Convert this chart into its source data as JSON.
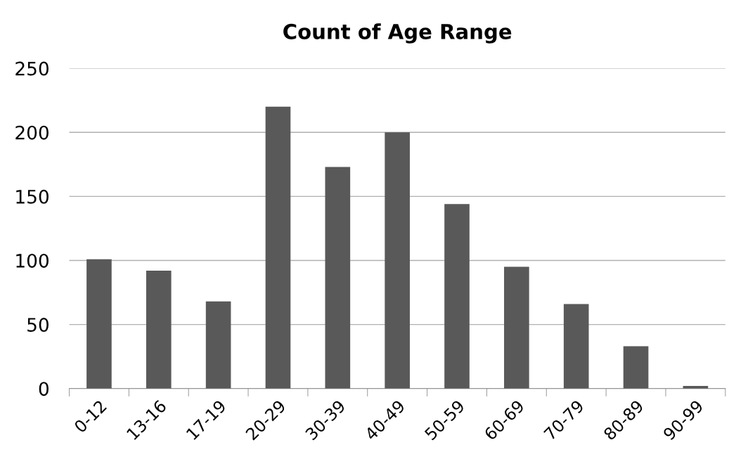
{
  "chart_data": {
    "type": "bar",
    "title": "Count of Age Range",
    "categories": [
      "0-12",
      "13-16",
      "17-19",
      "20-29",
      "30-39",
      "40-49",
      "50-59",
      "60-69",
      "70-79",
      "80-89",
      "90-99"
    ],
    "values": [
      101,
      92,
      68,
      220,
      173,
      200,
      144,
      95,
      66,
      33,
      2
    ],
    "color": "#595959",
    "ylim": [
      0,
      250
    ],
    "yticks": [
      0,
      50,
      100,
      150,
      200,
      250
    ],
    "grid": "y",
    "legend": false
  }
}
